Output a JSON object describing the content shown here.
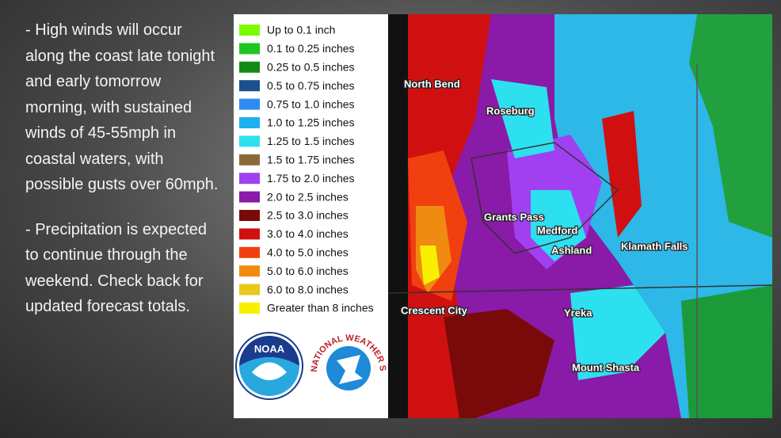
{
  "bullets": [
    "- High winds will occur along the coast late tonight and early tomorrow morning, with sustained winds of 45-55mph in coastal waters, with possible gusts over 60mph.",
    "- Precipitation is expected to continue through the weekend. Check back for updated forecast totals."
  ],
  "legend": [
    {
      "label": "Up to 0.1 inch",
      "color": "#7cfc00"
    },
    {
      "label": "0.1 to 0.25 inches",
      "color": "#22c422"
    },
    {
      "label": "0.25 to 0.5 inches",
      "color": "#138a13"
    },
    {
      "label": "0.5 to 0.75 inches",
      "color": "#1c4f8c"
    },
    {
      "label": "0.75 to 1.0 inches",
      "color": "#2d8cf0"
    },
    {
      "label": "1.0 to 1.25 inches",
      "color": "#1eb0f0"
    },
    {
      "label": "1.25 to 1.5 inches",
      "color": "#2de0f0"
    },
    {
      "label": "1.5 to 1.75 inches",
      "color": "#8b6a3a"
    },
    {
      "label": "1.75 to 2.0 inches",
      "color": "#a040f0"
    },
    {
      "label": "2.0 to 2.5 inches",
      "color": "#8a1aa8"
    },
    {
      "label": "2.5 to 3.0 inches",
      "color": "#7a0a0a"
    },
    {
      "label": "3.0 to 4.0 inches",
      "color": "#d01010"
    },
    {
      "label": "4.0 to 5.0 inches",
      "color": "#f04010"
    },
    {
      "label": "5.0 to 6.0 inches",
      "color": "#f08a10"
    },
    {
      "label": "6.0 to 8.0 inches",
      "color": "#e8c818"
    },
    {
      "label": "Greater than 8 inches",
      "color": "#f8f000"
    }
  ],
  "cities": [
    "North Bend",
    "Roseburg",
    "Grants Pass",
    "Medford",
    "Ashland",
    "Klamath Falls",
    "Crescent City",
    "Yreka",
    "Mount Shasta"
  ],
  "logos": {
    "noaa": "NOAA",
    "nws": "NATIONAL WEATHER SERVICE"
  }
}
